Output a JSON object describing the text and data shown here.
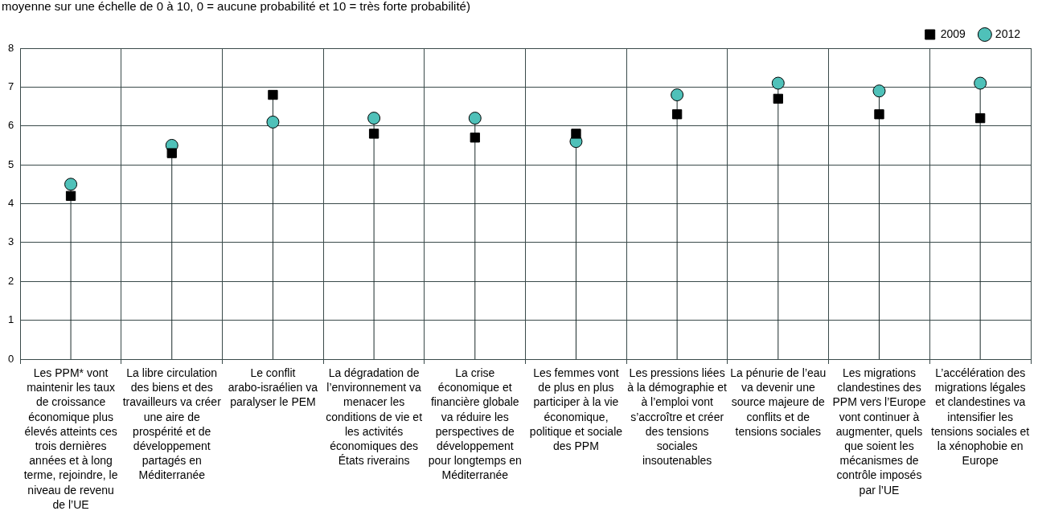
{
  "chart_data": {
    "type": "lollipop",
    "title": "moyenne sur une échelle de 0 à 10, 0 = aucune probabilité et 10 = très forte probabilité)",
    "categories": [
      "Les PPM* vont maintenir les taux de croissance économique plus élevés atteints ces trois dernières années et à long terme, rejoindre, le niveau de revenu de l’UE",
      "La libre circulation des biens et des travailleurs va créer une aire de prospérité et de développement partagés en Méditerranée",
      "Le conflit arabo-israélien va paralyser le PEM",
      "La dégradation de l’environnement va menacer les conditions de vie et les activités économiques des États riverains",
      "La crise économique et financière globale va réduire les perspectives de développement pour longtemps en Méditerranée",
      "Les femmes vont de plus en plus participer à la vie économique, politique et sociale des PPM",
      "Les pressions liées à la démographie et à l’emploi vont s’accroître et créer des tensions sociales insoutenables",
      "La pénurie de l’eau va devenir une source majeure de conflits et de tensions sociales",
      "Les migrations clandestines des PPM vers l’Europe vont continuer à augmenter, quels que soient les mécanismes de contrôle imposés par l’UE",
      "L’accélération des migrations légales et clandestines va intensifier les tensions sociales et la xénophobie en Europe"
    ],
    "series": [
      {
        "name": "2009",
        "color": "#000000",
        "marker": "square",
        "values": [
          4.2,
          5.3,
          6.8,
          5.8,
          5.7,
          5.8,
          6.3,
          6.7,
          6.3,
          6.2
        ]
      },
      {
        "name": "2012",
        "color": "#4fc1b9",
        "marker": "circle",
        "values": [
          4.5,
          5.5,
          6.1,
          6.2,
          6.2,
          5.6,
          6.8,
          7.1,
          6.9,
          7.1
        ]
      }
    ],
    "ylim": [
      0,
      8
    ],
    "yticks": [
      0,
      1,
      2,
      3,
      4,
      5,
      6,
      7,
      8
    ],
    "grid": true,
    "legend": "top right"
  }
}
